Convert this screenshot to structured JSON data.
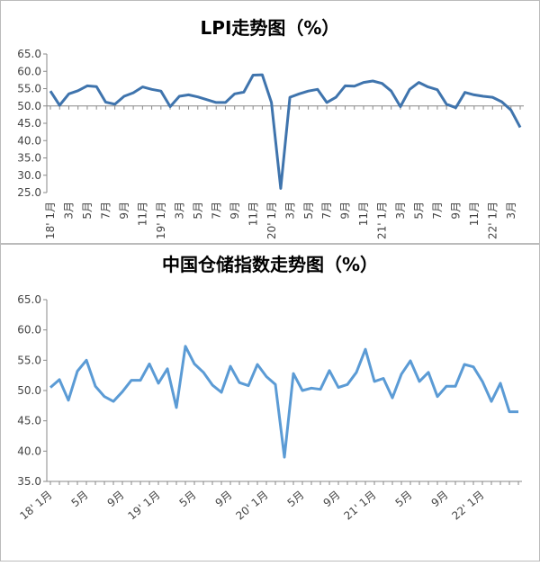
{
  "chart_data": [
    {
      "type": "line",
      "title": "LPI走势图（%）",
      "categories": [
        "18' 1月",
        null,
        "3月",
        null,
        "5月",
        null,
        "7月",
        null,
        "9月",
        null,
        "11月",
        null,
        "19' 1月",
        null,
        "3月",
        null,
        "5月",
        null,
        "7月",
        null,
        "9月",
        null,
        "11月",
        null,
        "20' 1月",
        null,
        "3月",
        null,
        "5月",
        null,
        "7月",
        null,
        "9月",
        null,
        "11月",
        null,
        "21' 1月",
        null,
        "3月",
        null,
        "5月",
        null,
        "7月",
        null,
        "9月",
        null,
        "11月",
        null,
        "22' 1月",
        null,
        "3月",
        null
      ],
      "series": [
        {
          "name": "LPI",
          "color": "#3f74ad",
          "values": [
            54.3,
            50.2,
            53.5,
            54.4,
            55.8,
            55.6,
            51.1,
            50.5,
            52.8,
            53.8,
            55.5,
            54.8,
            54.3,
            49.8,
            52.8,
            53.2,
            52.6,
            51.8,
            51.0,
            51.0,
            53.5,
            54.0,
            58.9,
            59.0,
            51.0,
            26.2,
            52.5,
            53.5,
            54.3,
            54.8,
            51.0,
            52.5,
            55.8,
            55.7,
            56.8,
            57.2,
            56.5,
            54.3,
            49.8,
            54.8,
            56.8,
            55.5,
            54.7,
            50.5,
            49.5,
            53.9,
            53.2,
            52.8,
            52.5,
            51.2,
            48.8,
            43.8
          ]
        }
      ],
      "ylim": [
        25,
        65
      ],
      "yticks": [
        {
          "value": 25,
          "label": "25.0"
        },
        {
          "value": 30,
          "label": "30.0"
        },
        {
          "value": 35,
          "label": "35.0"
        },
        {
          "value": 40,
          "label": "40.0"
        },
        {
          "value": 45,
          "label": "45.0"
        },
        {
          "value": 50,
          "label": "50.0"
        },
        {
          "value": 55,
          "label": "55.0"
        },
        {
          "value": 60,
          "label": "60.0"
        },
        {
          "value": 65,
          "label": "65.0"
        }
      ],
      "x_axis_at": 50
    },
    {
      "type": "line",
      "title": "中国仓储指数走势图（%）",
      "categories": [
        "18' 1月",
        null,
        null,
        null,
        "5月",
        null,
        null,
        null,
        "9月",
        null,
        null,
        null,
        "19' 1月",
        null,
        null,
        null,
        "5月",
        null,
        null,
        null,
        "9月",
        null,
        null,
        null,
        "20' 1月",
        null,
        null,
        null,
        "5月",
        null,
        null,
        null,
        "9月",
        null,
        null,
        null,
        "21' 1月",
        null,
        null,
        null,
        "5月",
        null,
        null,
        null,
        "9月",
        null,
        null,
        null,
        "22' 1月",
        null,
        null,
        null,
        null
      ],
      "series": [
        {
          "name": "中国仓储指数",
          "color": "#5b9bd5",
          "values": [
            50.5,
            51.8,
            48.4,
            53.2,
            55.0,
            50.7,
            49.0,
            48.2,
            49.8,
            51.7,
            51.7,
            54.4,
            51.2,
            53.6,
            47.2,
            57.3,
            54.4,
            53.0,
            50.9,
            49.7,
            54.0,
            51.3,
            50.8,
            54.3,
            52.3,
            51.0,
            39.0,
            52.8,
            50.0,
            50.4,
            50.2,
            53.3,
            50.5,
            51.0,
            53.0,
            56.8,
            51.5,
            52.0,
            48.8,
            52.7,
            54.9,
            51.5,
            53.0,
            49.0,
            50.7,
            50.7,
            54.3,
            53.9,
            51.5,
            48.2,
            51.2,
            46.5,
            46.5
          ]
        }
      ],
      "ylim": [
        35,
        65
      ],
      "yticks": [
        {
          "value": 35,
          "label": "35.0"
        },
        {
          "value": 40,
          "label": "40.0"
        },
        {
          "value": 45,
          "label": "45.0"
        },
        {
          "value": 50,
          "label": "50.0"
        },
        {
          "value": 55,
          "label": "55.0"
        },
        {
          "value": 60,
          "label": "60.0"
        },
        {
          "value": 65,
          "label": "65.0"
        }
      ]
    }
  ]
}
